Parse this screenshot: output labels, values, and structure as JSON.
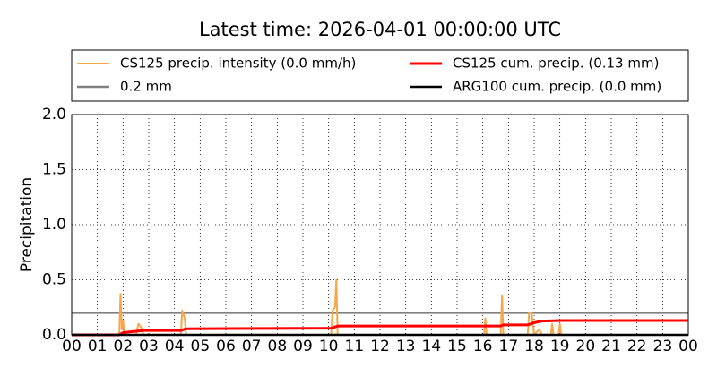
{
  "chart_data": {
    "type": "line",
    "title": "Latest time: 2026-04-01 00:00:00 UTC",
    "y_label": "Precipitation",
    "series": [
      {
        "name": "CS125 precip. intensity (0.0 mm/h)",
        "color": "#f9a64a",
        "x": [
          0,
          1.85,
          1.9,
          1.95,
          2.0,
          2.05,
          2.5,
          2.6,
          2.7,
          2.8,
          4.25,
          4.3,
          4.4,
          4.45,
          10.1,
          10.15,
          10.25,
          10.3,
          10.35,
          16.05,
          16.1,
          16.15,
          16.7,
          16.75,
          16.8,
          17.75,
          17.8,
          17.9,
          18.0,
          18.2,
          18.3,
          18.65,
          18.7,
          18.75,
          18.95,
          19.0,
          19.05,
          24
        ],
        "values": [
          0,
          0,
          0.37,
          0.05,
          0.13,
          0,
          0,
          0.1,
          0.07,
          0,
          0,
          0.22,
          0.15,
          0,
          0,
          0.22,
          0.25,
          0.5,
          0,
          0,
          0.15,
          0,
          0,
          0.36,
          0,
          0,
          0.2,
          0.2,
          0,
          0.05,
          0,
          0,
          0.1,
          0,
          0,
          0.1,
          0,
          0
        ]
      },
      {
        "name": "CS125 cum. precip. (0.13 mm)",
        "color": "#ff0000",
        "x": [
          0,
          1.85,
          2.0,
          2.8,
          4.25,
          4.45,
          10.1,
          10.35,
          16.7,
          16.8,
          17.75,
          18.0,
          18.3,
          19.05,
          24
        ],
        "values": [
          0,
          0,
          0.02,
          0.04,
          0.04,
          0.055,
          0.06,
          0.08,
          0.08,
          0.09,
          0.09,
          0.11,
          0.125,
          0.13,
          0.13
        ]
      },
      {
        "name": "0.2 mm",
        "color": "#808080",
        "x": [
          0,
          24
        ],
        "values": [
          0.2,
          0.2
        ]
      },
      {
        "name": "ARG100 cum. precip. (0.0 mm)",
        "color": "#000000",
        "x": [
          0,
          24
        ],
        "values": [
          0,
          0
        ]
      }
    ],
    "xlim": [
      0,
      24
    ],
    "xticks": [
      {
        "value": 0,
        "label": "00"
      },
      {
        "value": 1,
        "label": "01"
      },
      {
        "value": 2,
        "label": "02"
      },
      {
        "value": 3,
        "label": "03"
      },
      {
        "value": 4,
        "label": "04"
      },
      {
        "value": 5,
        "label": "05"
      },
      {
        "value": 6,
        "label": "06"
      },
      {
        "value": 7,
        "label": "07"
      },
      {
        "value": 8,
        "label": "08"
      },
      {
        "value": 9,
        "label": "09"
      },
      10,
      11,
      12,
      13,
      14,
      15,
      16,
      17,
      18,
      19,
      20,
      21,
      22,
      23,
      {
        "value": 24,
        "label": "00"
      }
    ],
    "ylim": [
      0,
      2
    ],
    "yticks": [
      {
        "value": 0,
        "label": "0.0"
      },
      0.5,
      {
        "value": 1,
        "label": "1.0"
      },
      1.5,
      {
        "value": 2,
        "label": "2.0"
      }
    ],
    "grid": true
  }
}
